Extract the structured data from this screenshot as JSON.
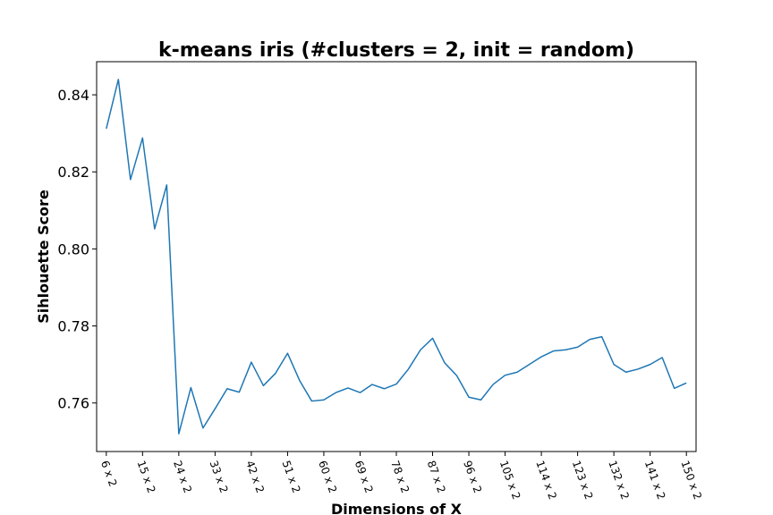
{
  "chart_data": {
    "type": "line",
    "title": "k-means iris (#clusters = 2, init = random)",
    "xlabel": "Dimensions of X",
    "ylabel": "Sihlouette Score",
    "x": [
      6,
      9,
      12,
      15,
      18,
      21,
      24,
      27,
      30,
      33,
      36,
      39,
      42,
      45,
      48,
      51,
      54,
      57,
      60,
      63,
      66,
      69,
      72,
      75,
      78,
      81,
      84,
      87,
      90,
      93,
      96,
      99,
      102,
      105,
      108,
      111,
      114,
      117,
      120,
      123,
      126,
      129,
      132,
      135,
      138,
      141,
      144,
      147,
      150
    ],
    "xticks": [
      6,
      15,
      24,
      33,
      42,
      51,
      60,
      69,
      78,
      87,
      96,
      105,
      114,
      123,
      132,
      141,
      150
    ],
    "xtick_labels": [
      "6 x 2",
      "15 x 2",
      "24 x 2",
      "33 x 2",
      "42 x 2",
      "51 x 2",
      "60 x 2",
      "69 x 2",
      "78 x 2",
      "87 x 2",
      "96 x 2",
      "105 x 2",
      "114 x 2",
      "123 x 2",
      "132 x 2",
      "141 x 2",
      "150 x 2"
    ],
    "series": [
      {
        "color": "#1f77b4",
        "values": [
          0.8312,
          0.844,
          0.818,
          0.8288,
          0.8052,
          0.8166,
          0.752,
          0.764,
          0.7535,
          0.7585,
          0.7637,
          0.7628,
          0.7706,
          0.7645,
          0.7677,
          0.7729,
          0.7658,
          0.7605,
          0.7608,
          0.7627,
          0.7639,
          0.7627,
          0.7648,
          0.7637,
          0.7649,
          0.7688,
          0.7738,
          0.7768,
          0.7704,
          0.7671,
          0.7615,
          0.7608,
          0.7648,
          0.7672,
          0.768,
          0.77,
          0.772,
          0.7735,
          0.7738,
          0.7745,
          0.7765,
          0.7772,
          0.77,
          0.768,
          0.7688,
          0.77,
          0.7718,
          0.7638,
          0.7652
        ]
      }
    ],
    "yticks": [
      0.76,
      0.78,
      0.8,
      0.82,
      0.84
    ],
    "ytick_labels": [
      "0.76",
      "0.78",
      "0.80",
      "0.82",
      "0.84"
    ],
    "xlim": [
      3.6,
      152.4
    ],
    "ylim": [
      0.7474,
      0.8486
    ],
    "grid": false
  }
}
